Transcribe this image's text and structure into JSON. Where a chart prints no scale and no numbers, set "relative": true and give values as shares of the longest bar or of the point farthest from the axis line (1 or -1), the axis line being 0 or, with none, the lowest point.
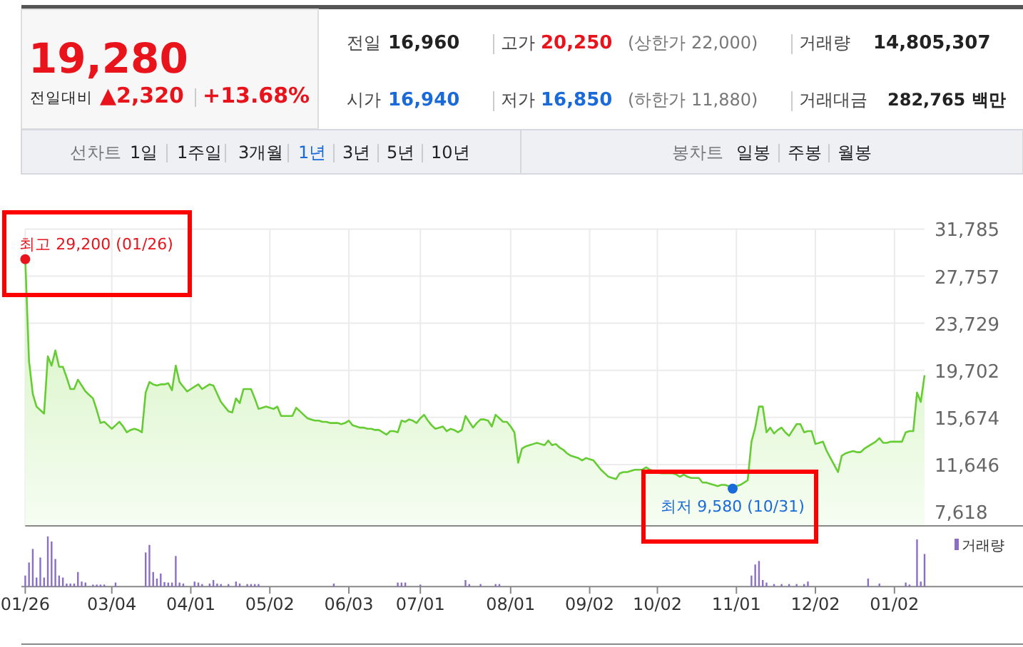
{
  "chart_data": [
    {
      "type": "other",
      "title": "19,280",
      "annotations": [
        "전일대비",
        "▲2,320",
        "+13.68%",
        "전일",
        "16,960",
        "고가",
        "20,250",
        "(상한가 22,000)",
        "시가",
        "16,940",
        "저가",
        "16,850",
        "(하한가 11,880)",
        "거래량",
        "14,805,307",
        "거래대금",
        "282,765 백만",
        "선차트",
        "1일",
        "1주일",
        "3개월",
        "1년",
        "3년",
        "5년",
        "10년",
        "봉차트",
        "일봉",
        "주봉",
        "월봉"
      ]
    },
    {
      "type": "area",
      "color": "#66cc33",
      "grid": true,
      "tick_labels": "y",
      "ylim": [
        6400,
        31785
      ],
      "yticks": [
        {
          "value": 7618,
          "label": "7,618"
        },
        {
          "value": 11646,
          "label": "11,646"
        },
        {
          "value": 15674,
          "label": "15,674"
        },
        {
          "value": 19702,
          "label": "19,702"
        },
        {
          "value": 23729,
          "label": "23,729"
        },
        {
          "value": 27757,
          "label": "27,757"
        },
        {
          "value": 31785,
          "label": "31,785"
        }
      ],
      "categories": [
        "01/26",
        null,
        null,
        null,
        null,
        null,
        null,
        null,
        null,
        null,
        null,
        null,
        null,
        null,
        null,
        null,
        null,
        null,
        null,
        null,
        null,
        null,
        null,
        "03/04",
        null,
        null,
        null,
        null,
        null,
        null,
        null,
        null,
        null,
        null,
        null,
        null,
        null,
        null,
        null,
        null,
        null,
        null,
        null,
        null,
        "04/01",
        null,
        null,
        null,
        null,
        null,
        null,
        null,
        null,
        null,
        null,
        null,
        null,
        null,
        null,
        null,
        null,
        null,
        null,
        null,
        null,
        "05/02",
        null,
        null,
        null,
        null,
        null,
        null,
        null,
        null,
        null,
        null,
        null,
        null,
        null,
        null,
        null,
        null,
        null,
        null,
        null,
        null,
        "06/03",
        null,
        null,
        null,
        null,
        null,
        null,
        null,
        null,
        null,
        null,
        null,
        null,
        null,
        null,
        null,
        null,
        null,
        null,
        "07/01",
        null,
        null,
        null,
        null,
        null,
        null,
        null,
        null,
        null,
        null,
        null,
        null,
        null,
        null,
        null,
        null,
        null,
        null,
        null,
        null,
        null,
        null,
        null,
        "08/01",
        null,
        null,
        null,
        null,
        null,
        null,
        null,
        null,
        null,
        null,
        null,
        null,
        null,
        null,
        null,
        null,
        null,
        null,
        null,
        null,
        "09/02",
        null,
        null,
        null,
        null,
        null,
        null,
        null,
        null,
        null,
        null,
        null,
        null,
        null,
        null,
        null,
        null,
        null,
        "10/02",
        null,
        null,
        null,
        null,
        null,
        null,
        null,
        null,
        null,
        null,
        null,
        null,
        null,
        null,
        null,
        null,
        null,
        null,
        null,
        null,
        "11/01",
        null,
        null,
        null,
        null,
        null,
        null,
        null,
        null,
        null,
        null,
        null,
        null,
        null,
        null,
        null,
        null,
        null,
        null,
        null,
        null,
        "12/02",
        null,
        null,
        null,
        null,
        null,
        null,
        null,
        null,
        null,
        null,
        null,
        null,
        null,
        null,
        null,
        null,
        null,
        null,
        null,
        null,
        "01/02",
        null,
        null,
        null,
        null,
        null,
        null,
        null,
        null
      ],
      "values": [
        29200,
        20500,
        17700,
        16600,
        16300,
        16000,
        20900,
        20100,
        21400,
        20000,
        20000,
        19100,
        18100,
        18100,
        18900,
        18400,
        17900,
        17600,
        17300,
        16300,
        15200,
        15300,
        15000,
        14700,
        15000,
        15300,
        14900,
        14400,
        14600,
        14700,
        14600,
        14400,
        17800,
        18700,
        18500,
        18400,
        18500,
        18500,
        18600,
        18000,
        20100,
        18700,
        18300,
        17900,
        18100,
        18300,
        18500,
        18100,
        18300,
        18500,
        18400,
        17700,
        17000,
        16600,
        16200,
        16100,
        17300,
        16900,
        18100,
        18100,
        18100,
        17300,
        16400,
        16500,
        16600,
        16500,
        16400,
        16600,
        15800,
        15800,
        15800,
        15800,
        16500,
        16200,
        15900,
        15600,
        15500,
        15400,
        15400,
        15300,
        15300,
        15200,
        15200,
        15200,
        15100,
        15200,
        15400,
        15000,
        14900,
        14800,
        14800,
        14700,
        14700,
        14600,
        14600,
        14400,
        14200,
        14500,
        14500,
        14400,
        15400,
        15300,
        15500,
        15400,
        15200,
        15600,
        15900,
        15400,
        15000,
        14700,
        14800,
        14900,
        14500,
        14700,
        14600,
        14400,
        14600,
        15800,
        15300,
        14800,
        15200,
        15500,
        15500,
        15400,
        14900,
        15900,
        15600,
        15300,
        15300,
        14900,
        14400,
        11800,
        13000,
        13200,
        13300,
        13400,
        13500,
        13400,
        13300,
        13700,
        13300,
        13400,
        13100,
        12900,
        12600,
        12400,
        12300,
        12200,
        12000,
        12200,
        12100,
        12000,
        11600,
        11200,
        10900,
        10600,
        10500,
        10400,
        10900,
        11000,
        11000,
        11100,
        11200,
        11200,
        11200,
        11400,
        11200,
        11100,
        11000,
        10900,
        10900,
        10900,
        10900,
        10800,
        10600,
        10800,
        10600,
        10500,
        10500,
        10500,
        10100,
        10100,
        10000,
        9900,
        9800,
        9900,
        9900,
        9800,
        9580,
        9800,
        9900,
        10100,
        10300,
        13600,
        14800,
        16600,
        16600,
        14400,
        14800,
        14300,
        14600,
        14800,
        14400,
        14100,
        14600,
        15100,
        15100,
        14400,
        14500,
        14500,
        13400,
        13500,
        13600,
        12800,
        12200,
        11600,
        11000,
        12400,
        12600,
        12700,
        12800,
        12700,
        12700,
        13000,
        13200,
        13400,
        13600,
        13900,
        13500,
        13500,
        13600,
        13600,
        13600,
        13600,
        14400,
        14500,
        14500,
        17800,
        17000,
        19280
      ],
      "annotations": [
        {
          "text": "최고 29,200 (01/26)",
          "x": "01/26",
          "y": 29200
        },
        {
          "text": "최저 9,580 (10/31)",
          "y": 9580
        }
      ]
    },
    {
      "type": "bar",
      "relative": true,
      "legend": "top right",
      "tick_labels": "x",
      "categories": [
        "01/26",
        null,
        null,
        null,
        null,
        null,
        null,
        null,
        null,
        null,
        null,
        null,
        null,
        null,
        null,
        null,
        null,
        null,
        null,
        null,
        null,
        null,
        null,
        "03/04",
        null,
        null,
        null,
        null,
        null,
        null,
        null,
        null,
        null,
        null,
        null,
        null,
        null,
        null,
        null,
        null,
        null,
        null,
        null,
        null,
        "04/01",
        null,
        null,
        null,
        null,
        null,
        null,
        null,
        null,
        null,
        null,
        null,
        null,
        null,
        null,
        null,
        null,
        null,
        null,
        null,
        null,
        "05/02",
        null,
        null,
        null,
        null,
        null,
        null,
        null,
        null,
        null,
        null,
        null,
        null,
        null,
        null,
        null,
        null,
        null,
        null,
        null,
        null,
        "06/03",
        null,
        null,
        null,
        null,
        null,
        null,
        null,
        null,
        null,
        null,
        null,
        null,
        null,
        null,
        null,
        null,
        null,
        null,
        "07/01",
        null,
        null,
        null,
        null,
        null,
        null,
        null,
        null,
        null,
        null,
        null,
        null,
        null,
        null,
        null,
        null,
        null,
        null,
        null,
        null,
        null,
        null,
        null,
        "08/01",
        null,
        null,
        null,
        null,
        null,
        null,
        null,
        null,
        null,
        null,
        null,
        null,
        null,
        null,
        null,
        null,
        null,
        null,
        null,
        null,
        "09/02",
        null,
        null,
        null,
        null,
        null,
        null,
        null,
        null,
        null,
        null,
        null,
        null,
        null,
        null,
        null,
        null,
        null,
        "10/02",
        null,
        null,
        null,
        null,
        null,
        null,
        null,
        null,
        null,
        null,
        null,
        null,
        null,
        null,
        null,
        null,
        null,
        null,
        null,
        null,
        "11/01",
        null,
        null,
        null,
        null,
        null,
        null,
        null,
        null,
        null,
        null,
        null,
        null,
        null,
        null,
        null,
        null,
        null,
        null,
        null,
        null,
        "12/02",
        null,
        null,
        null,
        null,
        null,
        null,
        null,
        null,
        null,
        null,
        null,
        null,
        null,
        null,
        null,
        null,
        null,
        null,
        null,
        null,
        "01/02",
        null,
        null,
        null,
        null,
        null,
        null,
        null,
        null
      ],
      "series": [
        {
          "name": "거래량",
          "color": "#8b6fc6",
          "values": [
            0.22,
            0.48,
            0.75,
            0.18,
            0.58,
            0.18,
            1,
            0.9,
            0.55,
            0.22,
            0.18,
            0.06,
            0.06,
            0.06,
            0.29,
            0.1,
            0.08,
            null,
            0.04,
            0.04,
            0.04,
            0.04,
            null,
            null,
            0.08,
            null,
            null,
            null,
            null,
            null,
            null,
            null,
            0.68,
            0.83,
            0.29,
            0.16,
            0.26,
            0.09,
            0.08,
            0.08,
            0.61,
            0.08,
            0.06,
            null,
            null,
            0.1,
            0.08,
            0.05,
            null,
            0.06,
            0.13,
            0.06,
            0.05,
            null,
            0.05,
            null,
            0.1,
            0.06,
            null,
            0.05,
            0.05,
            0.05,
            0.05,
            null,
            null,
            null,
            null,
            null,
            null,
            null,
            null,
            null,
            null,
            null,
            null,
            null,
            null,
            null,
            null,
            null,
            null,
            null,
            0.06,
            null,
            null,
            null,
            null,
            null,
            null,
            null,
            null,
            null,
            null,
            null,
            null,
            null,
            null,
            null,
            null,
            0.08,
            0.08,
            0.08,
            null,
            null,
            null,
            0.04,
            null,
            null,
            null,
            null,
            null,
            null,
            null,
            null,
            null,
            null,
            null,
            0.13,
            0.05,
            null,
            null,
            0.05,
            null,
            null,
            null,
            0.05,
            0.05,
            null,
            null,
            null,
            null,
            null,
            null,
            null,
            null,
            null,
            null,
            null,
            null,
            null,
            null,
            null,
            null,
            null,
            null,
            null,
            null,
            null,
            null,
            null,
            null,
            null,
            null,
            null,
            null,
            null,
            null,
            null,
            null,
            null,
            null,
            null,
            null,
            null,
            null,
            null,
            null,
            null,
            null,
            null,
            null,
            null,
            null,
            null,
            null,
            null,
            null,
            null,
            null,
            null,
            null,
            null,
            null,
            null,
            null,
            null,
            null,
            null,
            null,
            null,
            null,
            null,
            null,
            0.22,
            0.44,
            0.51,
            0.13,
            0.08,
            null,
            0.05,
            null,
            0.05,
            null,
            0.05,
            null,
            0.05,
            null,
            0.05,
            0.1,
            null,
            null,
            null,
            null,
            null,
            null,
            null,
            null,
            null,
            null,
            null,
            null,
            null,
            null,
            null,
            0.16,
            null,
            null,
            0.06,
            null,
            null,
            null,
            null,
            null,
            null,
            0.08,
            0.04,
            null,
            0.94,
            0.1,
            0.65
          ]
        }
      ]
    }
  ]
}
